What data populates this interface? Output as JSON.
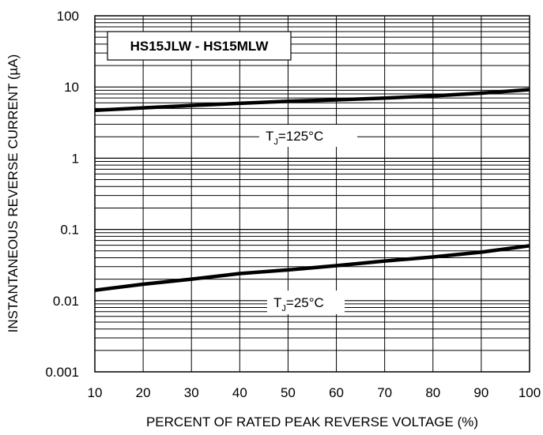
{
  "chart_data": {
    "type": "line",
    "title": "HS15JLW - HS15MLW",
    "xlabel": "PERCENT OF RATED PEAK REVERSE VOLTAGE (%)",
    "ylabel": "INSTANTANEOUS REVERSE CURRENT (µA)",
    "xlim": [
      10,
      100
    ],
    "ylim": [
      0.001,
      100
    ],
    "yscale": "log",
    "grid": true,
    "x_ticks": [
      "10",
      "20",
      "30",
      "40",
      "50",
      "60",
      "70",
      "80",
      "90",
      "100"
    ],
    "y_ticks": [
      "0.001",
      "0.01",
      "0.1",
      "1",
      "10",
      "100"
    ],
    "series": [
      {
        "name": "TJ=125°C",
        "x": [
          10,
          20,
          30,
          40,
          50,
          60,
          70,
          80,
          90,
          100
        ],
        "y": [
          4.7,
          5.1,
          5.5,
          5.9,
          6.3,
          6.6,
          7.0,
          7.5,
          8.2,
          9.2
        ]
      },
      {
        "name": "TJ=25°C",
        "x": [
          10,
          20,
          30,
          40,
          50,
          60,
          70,
          80,
          90,
          100
        ],
        "y": [
          0.014,
          0.017,
          0.02,
          0.024,
          0.027,
          0.031,
          0.036,
          0.041,
          0.048,
          0.059
        ]
      }
    ],
    "annotations": [
      {
        "series": 0,
        "prefix": "T",
        "sub": "J",
        "text": "=125°C"
      },
      {
        "series": 1,
        "prefix": "T",
        "sub": "J",
        "text": "=25°C"
      }
    ]
  }
}
